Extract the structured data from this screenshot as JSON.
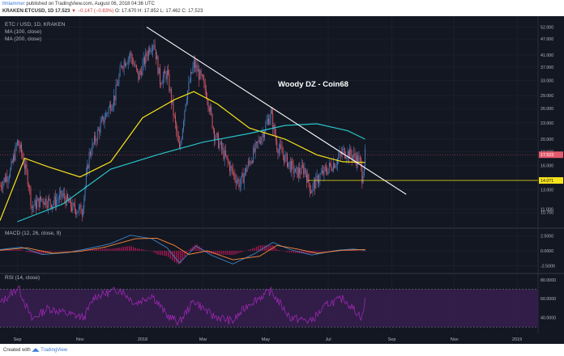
{
  "header": {
    "username": "llmlammer",
    "published": "published on TradingView.com, August 06, 2018 04:36 UTC",
    "symbol": "KRAKEN:ETCUSD, 1D",
    "last": "17.523",
    "change": "▼ −0.147 (−0.83%)",
    "ohlc": "O: 17.670 H: 17.852 L: 17.462 C: 17.523"
  },
  "legend": {
    "title": "ETC / USD, 1D, KRAKEN",
    "ma100": "MA (100, close)",
    "ma200": "MA (200, close)",
    "macd": "MACD (12, 26, close, 9)",
    "rsi": "RSI (14, close)",
    "annotation": "Woody DZ - Coin68"
  },
  "footer": {
    "created_with": "Created with",
    "brand": "TradingView"
  },
  "colors": {
    "background": "#131722",
    "up": "#4a7fc1",
    "down": "#e35a6b",
    "ma100": "#f7e319",
    "ma200": "#26c6c9",
    "trendline": "#ffffff",
    "support": "#f7e319",
    "macd": "#3d85c6",
    "signal": "#ff8a3d",
    "histogram": "#c2185b",
    "rsi": "#9c27b0",
    "rsi_band": "#3a1f52"
  },
  "chart_data": [
    {
      "type": "candlestick",
      "title": "ETC / USD, 1D, KRAKEN",
      "y_axis_scale": "log",
      "y_ticks": [
        "52.000",
        "47.000",
        "41.000",
        "37.000",
        "33.000",
        "29.000",
        "26.000",
        "23.000",
        "20.000",
        "18.000",
        "16.000",
        "13.000",
        "11.000",
        "10.700"
      ],
      "x_ticks": [
        "Sep",
        "Nov",
        "2018",
        "Mar",
        "May",
        "Jul",
        "Sep",
        "Nov",
        "2019"
      ],
      "x_range": [
        "2017-08-15",
        "2019-01-20"
      ],
      "y_range": [
        9.5,
        54
      ],
      "last_price_label": "17.523",
      "support_label": "14.071",
      "support_level": 14.071,
      "price_path": [
        {
          "date": "2017-08-15",
          "close": 13.5
        },
        {
          "date": "2017-08-25",
          "close": 15.2
        },
        {
          "date": "2017-09-01",
          "close": 19.5
        },
        {
          "date": "2017-09-05",
          "close": 17.8
        },
        {
          "date": "2017-09-12",
          "close": 13.8
        },
        {
          "date": "2017-09-15",
          "close": 11.2
        },
        {
          "date": "2017-09-25",
          "close": 12.0
        },
        {
          "date": "2017-10-05",
          "close": 11.6
        },
        {
          "date": "2017-10-15",
          "close": 12.4
        },
        {
          "date": "2017-10-25",
          "close": 11.1
        },
        {
          "date": "2017-11-03",
          "close": 10.9
        },
        {
          "date": "2017-11-10",
          "close": 17.5
        },
        {
          "date": "2017-11-20",
          "close": 22.0
        },
        {
          "date": "2017-12-05",
          "close": 29.0
        },
        {
          "date": "2017-12-12",
          "close": 38.0
        },
        {
          "date": "2017-12-20",
          "close": 41.0
        },
        {
          "date": "2017-12-28",
          "close": 34.0
        },
        {
          "date": "2018-01-08",
          "close": 44.0
        },
        {
          "date": "2018-01-12",
          "close": 46.0
        },
        {
          "date": "2018-01-18",
          "close": 33.0
        },
        {
          "date": "2018-01-25",
          "close": 35.0
        },
        {
          "date": "2018-02-06",
          "close": 18.0
        },
        {
          "date": "2018-02-12",
          "close": 28.0
        },
        {
          "date": "2018-02-20",
          "close": 38.0
        },
        {
          "date": "2018-02-28",
          "close": 33.0
        },
        {
          "date": "2018-03-05",
          "close": 29.0
        },
        {
          "date": "2018-03-12",
          "close": 21.0
        },
        {
          "date": "2018-03-20",
          "close": 18.0
        },
        {
          "date": "2018-03-30",
          "close": 15.0
        },
        {
          "date": "2018-04-06",
          "close": 13.6
        },
        {
          "date": "2018-04-12",
          "close": 15.5
        },
        {
          "date": "2018-04-20",
          "close": 18.0
        },
        {
          "date": "2018-04-28",
          "close": 21.0
        },
        {
          "date": "2018-05-06",
          "close": 25.0
        },
        {
          "date": "2018-05-12",
          "close": 19.0
        },
        {
          "date": "2018-05-20",
          "close": 17.0
        },
        {
          "date": "2018-05-30",
          "close": 15.0
        },
        {
          "date": "2018-06-08",
          "close": 15.5
        },
        {
          "date": "2018-06-14",
          "close": 13.0
        },
        {
          "date": "2018-06-22",
          "close": 14.5
        },
        {
          "date": "2018-06-30",
          "close": 15.5
        },
        {
          "date": "2018-07-08",
          "close": 16.5
        },
        {
          "date": "2018-07-16",
          "close": 18.0
        },
        {
          "date": "2018-07-24",
          "close": 17.5
        },
        {
          "date": "2018-08-01",
          "close": 16.5
        },
        {
          "date": "2018-08-03",
          "close": 14.5
        },
        {
          "date": "2018-08-06",
          "close": 17.523
        }
      ],
      "series": [
        {
          "name": "MA (100, close)",
          "points": [
            {
              "date": "2017-08-15",
              "value": 10.0
            },
            {
              "date": "2017-09-08",
              "value": 17.0
            },
            {
              "date": "2017-10-01",
              "value": 15.8
            },
            {
              "date": "2017-11-01",
              "value": 14.5
            },
            {
              "date": "2017-12-01",
              "value": 16.5
            },
            {
              "date": "2018-01-01",
              "value": 24.0
            },
            {
              "date": "2018-02-01",
              "value": 28.0
            },
            {
              "date": "2018-02-20",
              "value": 30.0
            },
            {
              "date": "2018-03-15",
              "value": 27.0
            },
            {
              "date": "2018-04-15",
              "value": 22.0
            },
            {
              "date": "2018-05-20",
              "value": 20.0
            },
            {
              "date": "2018-06-20",
              "value": 17.5
            },
            {
              "date": "2018-07-15",
              "value": 16.5
            },
            {
              "date": "2018-08-06",
              "value": 16.4
            }
          ]
        },
        {
          "name": "MA (200, close)",
          "points": [
            {
              "date": "2017-09-01",
              "value": 9.9
            },
            {
              "date": "2017-10-15",
              "value": 11.5
            },
            {
              "date": "2017-12-01",
              "value": 15.5
            },
            {
              "date": "2018-01-15",
              "value": 17.5
            },
            {
              "date": "2018-03-01",
              "value": 19.5
            },
            {
              "date": "2018-04-15",
              "value": 21.0
            },
            {
              "date": "2018-05-20",
              "value": 22.5
            },
            {
              "date": "2018-06-20",
              "value": 22.8
            },
            {
              "date": "2018-07-20",
              "value": 21.5
            },
            {
              "date": "2018-08-06",
              "value": 20.0
            }
          ]
        }
      ],
      "trendline": [
        {
          "date": "2018-01-05",
          "value": 52.0
        },
        {
          "date": "2018-09-15",
          "value": 12.5
        }
      ]
    },
    {
      "type": "line",
      "title": "MACD (12, 26, close, 9)",
      "y_ticks": [
        "2.5000",
        "0.0000",
        "-2.5000"
      ],
      "y_range": [
        -3.5,
        3.5
      ],
      "series": [
        {
          "name": "MACD",
          "points": [
            {
              "date": "2017-08-15",
              "value": 0.2
            },
            {
              "date": "2017-09-05",
              "value": 0.6
            },
            {
              "date": "2017-09-25",
              "value": -0.6
            },
            {
              "date": "2017-10-20",
              "value": -0.3
            },
            {
              "date": "2017-11-10",
              "value": 0.4
            },
            {
              "date": "2017-12-01",
              "value": 1.2
            },
            {
              "date": "2017-12-20",
              "value": 2.6
            },
            {
              "date": "2018-01-10",
              "value": 2.0
            },
            {
              "date": "2018-01-25",
              "value": 0.5
            },
            {
              "date": "2018-02-06",
              "value": -2.0
            },
            {
              "date": "2018-02-22",
              "value": 0.8
            },
            {
              "date": "2018-03-10",
              "value": -0.8
            },
            {
              "date": "2018-03-30",
              "value": -2.2
            },
            {
              "date": "2018-04-20",
              "value": -0.5
            },
            {
              "date": "2018-05-08",
              "value": 1.4
            },
            {
              "date": "2018-05-25",
              "value": 0.2
            },
            {
              "date": "2018-06-15",
              "value": -0.7
            },
            {
              "date": "2018-07-10",
              "value": 0.1
            },
            {
              "date": "2018-07-25",
              "value": 0.3
            },
            {
              "date": "2018-08-06",
              "value": 0.1
            }
          ]
        },
        {
          "name": "Signal",
          "points": [
            {
              "date": "2017-08-15",
              "value": 0.1
            },
            {
              "date": "2017-09-10",
              "value": 0.5
            },
            {
              "date": "2017-10-05",
              "value": -0.4
            },
            {
              "date": "2017-11-01",
              "value": -0.1
            },
            {
              "date": "2017-11-25",
              "value": 0.6
            },
            {
              "date": "2017-12-25",
              "value": 2.0
            },
            {
              "date": "2018-01-15",
              "value": 2.1
            },
            {
              "date": "2018-02-01",
              "value": 0.9
            },
            {
              "date": "2018-02-15",
              "value": -0.6
            },
            {
              "date": "2018-03-05",
              "value": 0.0
            },
            {
              "date": "2018-03-30",
              "value": -1.5
            },
            {
              "date": "2018-04-25",
              "value": -0.9
            },
            {
              "date": "2018-05-12",
              "value": 0.9
            },
            {
              "date": "2018-06-01",
              "value": 0.3
            },
            {
              "date": "2018-06-20",
              "value": -0.4
            },
            {
              "date": "2018-07-15",
              "value": 0.1
            },
            {
              "date": "2018-08-06",
              "value": 0.2
            }
          ]
        }
      ]
    },
    {
      "type": "line",
      "title": "RSI (14, close)",
      "y_ticks": [
        "80.0000",
        "60.0000",
        "40.0000"
      ],
      "y_range": [
        25,
        85
      ],
      "bands": [
        70,
        30
      ],
      "series": [
        {
          "name": "RSI",
          "points": [
            {
              "date": "2017-08-15",
              "value": 55
            },
            {
              "date": "2017-09-02",
              "value": 72
            },
            {
              "date": "2017-09-15",
              "value": 38
            },
            {
              "date": "2017-10-01",
              "value": 50
            },
            {
              "date": "2017-10-20",
              "value": 44
            },
            {
              "date": "2017-11-05",
              "value": 40
            },
            {
              "date": "2017-11-15",
              "value": 62
            },
            {
              "date": "2017-12-10",
              "value": 70
            },
            {
              "date": "2017-12-25",
              "value": 55
            },
            {
              "date": "2018-01-10",
              "value": 64
            },
            {
              "date": "2018-01-25",
              "value": 42
            },
            {
              "date": "2018-02-06",
              "value": 35
            },
            {
              "date": "2018-02-20",
              "value": 58
            },
            {
              "date": "2018-03-10",
              "value": 42
            },
            {
              "date": "2018-03-30",
              "value": 36
            },
            {
              "date": "2018-04-15",
              "value": 55
            },
            {
              "date": "2018-05-06",
              "value": 68
            },
            {
              "date": "2018-05-25",
              "value": 40
            },
            {
              "date": "2018-06-14",
              "value": 36
            },
            {
              "date": "2018-07-01",
              "value": 55
            },
            {
              "date": "2018-07-16",
              "value": 60
            },
            {
              "date": "2018-08-03",
              "value": 40
            },
            {
              "date": "2018-08-06",
              "value": 58
            }
          ]
        }
      ]
    }
  ]
}
